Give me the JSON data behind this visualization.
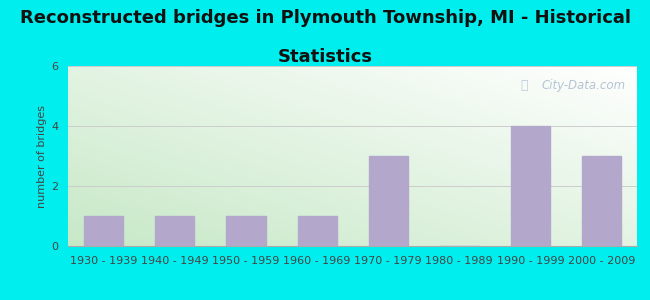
{
  "title_line1": "Reconstructed bridges in Plymouth Township, MI - Historical",
  "title_line2": "Statistics",
  "categories": [
    "1930 - 1939",
    "1940 - 1949",
    "1950 - 1959",
    "1960 - 1969",
    "1970 - 1979",
    "1980 - 1989",
    "1990 - 1999",
    "2000 - 2009"
  ],
  "values": [
    1,
    1,
    1,
    1,
    3,
    0,
    4,
    3
  ],
  "bar_color": "#b3a8cc",
  "figure_bg": "#00eeee",
  "plot_bg_topleft": "#d8edd8",
  "plot_bg_topright": "#ffffff",
  "plot_bg_bottomleft": "#c8e8c8",
  "plot_bg_bottomright": "#f0f8f0",
  "ylabel": "number of bridges",
  "ylim": [
    0,
    6
  ],
  "yticks": [
    0,
    2,
    4,
    6
  ],
  "watermark": "City-Data.com",
  "title_fontsize": 13,
  "tick_label_fontsize": 8,
  "ylabel_fontsize": 8,
  "title_color": "#111111",
  "tick_color": "#444444",
  "grid_color": "#cccccc",
  "watermark_color": "#aabbcc",
  "bar_width": 0.55
}
